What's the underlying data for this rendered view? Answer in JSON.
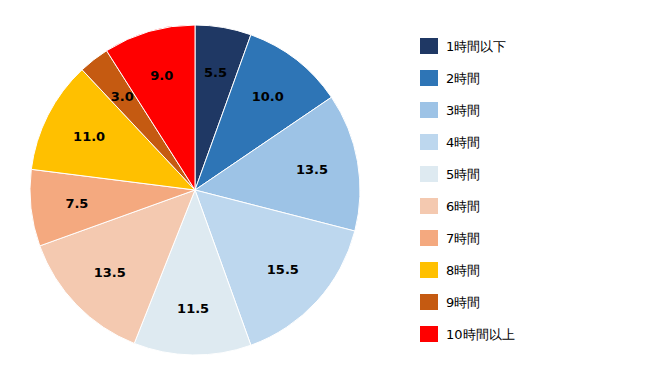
{
  "chart_data": {
    "type": "pie",
    "categories": [
      "1時間以下",
      "2時間",
      "3時間",
      "4時間",
      "5時間",
      "6時間",
      "7時間",
      "8時間",
      "9時間",
      "10時間以上"
    ],
    "values": [
      5.5,
      10.0,
      13.5,
      15.5,
      11.5,
      13.5,
      7.5,
      11.0,
      3.0,
      9.0
    ],
    "value_labels": [
      "5.5",
      "10.0",
      "13.5",
      "15.5",
      "11.5",
      "13.5",
      "7.5",
      "11.0",
      "3.0",
      "9.0"
    ],
    "colors": [
      "#1f3864",
      "#2e75b6",
      "#9dc3e6",
      "#bdd7ee",
      "#deeaf1",
      "#f4c9b0",
      "#f4a97f",
      "#ffc000",
      "#c55a11",
      "#ff0000"
    ],
    "data_labels": true,
    "legend": "right"
  }
}
